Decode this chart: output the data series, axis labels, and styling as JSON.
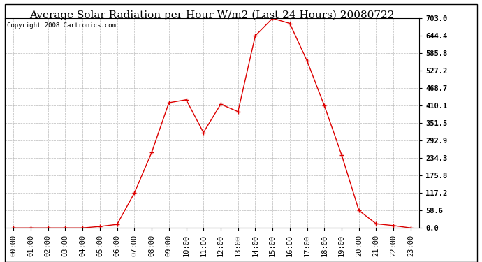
{
  "title": "Average Solar Radiation per Hour W/m2 (Last 24 Hours) 20080722",
  "copyright_text": "Copyright 2008 Cartronics.com",
  "hours": [
    0,
    1,
    2,
    3,
    4,
    5,
    6,
    7,
    8,
    9,
    10,
    11,
    12,
    13,
    14,
    15,
    16,
    17,
    18,
    19,
    20,
    21,
    22,
    23
  ],
  "values": [
    0.0,
    0.0,
    0.0,
    0.0,
    0.0,
    5.0,
    12.0,
    117.2,
    253.0,
    420.0,
    430.0,
    320.0,
    415.0,
    390.0,
    644.4,
    703.0,
    686.0,
    560.0,
    410.1,
    245.0,
    58.6,
    14.0,
    8.0,
    0.0
  ],
  "line_color": "#dd0000",
  "marker": "+",
  "marker_size": 4,
  "background_color": "#ffffff",
  "grid_color": "#bbbbbb",
  "yticks": [
    0.0,
    58.6,
    117.2,
    175.8,
    234.3,
    292.9,
    351.5,
    410.1,
    468.7,
    527.2,
    585.8,
    644.4,
    703.0
  ],
  "ylim": [
    0.0,
    703.0
  ],
  "title_fontsize": 11,
  "copyright_fontsize": 6.5,
  "tick_label_fontsize": 7.5,
  "hour_labels": [
    "00:00",
    "01:00",
    "02:00",
    "03:00",
    "04:00",
    "05:00",
    "06:00",
    "07:00",
    "08:00",
    "09:00",
    "10:00",
    "11:00",
    "12:00",
    "13:00",
    "14:00",
    "15:00",
    "16:00",
    "17:00",
    "18:00",
    "19:00",
    "20:00",
    "21:00",
    "22:00",
    "23:00"
  ]
}
